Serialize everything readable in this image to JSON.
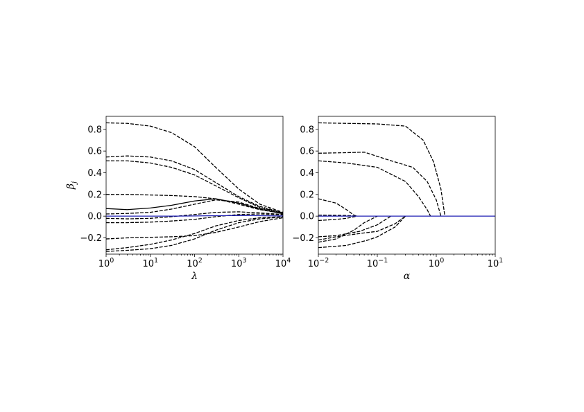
{
  "chart_data": [
    {
      "type": "line",
      "xlabel": "λ",
      "ylabel": "β",
      "ylabel_subscript": "j",
      "xscale": "log",
      "xlim": [
        1,
        10000
      ],
      "ylim": [
        -0.35,
        0.92
      ],
      "x_ticks": [
        {
          "value": 1,
          "base": "10",
          "exp": "0"
        },
        {
          "value": 10,
          "base": "10",
          "exp": "1"
        },
        {
          "value": 100,
          "base": "10",
          "exp": "2"
        },
        {
          "value": 1000,
          "base": "10",
          "exp": "3"
        },
        {
          "value": 10000,
          "base": "10",
          "exp": "4"
        }
      ],
      "y_ticks": [
        {
          "value": -0.2,
          "label": "−0.2"
        },
        {
          "value": 0.0,
          "label": "0.0"
        },
        {
          "value": 0.2,
          "label": "0.2"
        },
        {
          "value": 0.4,
          "label": "0.4"
        },
        {
          "value": 0.6,
          "label": "0.6"
        },
        {
          "value": 0.8,
          "label": "0.8"
        }
      ],
      "grid": false,
      "series": [
        {
          "color": "#000000",
          "dash": "dashed",
          "x": [
            1,
            3,
            10,
            30,
            100,
            300,
            1000,
            3000,
            10000
          ],
          "y": [
            0.86,
            0.855,
            0.83,
            0.77,
            0.64,
            0.45,
            0.25,
            0.11,
            0.035
          ]
        },
        {
          "color": "#000000",
          "dash": "dashed",
          "x": [
            1,
            3,
            10,
            30,
            100,
            300,
            1000,
            3000,
            10000
          ],
          "y": [
            0.545,
            0.555,
            0.545,
            0.51,
            0.43,
            0.31,
            0.18,
            0.09,
            0.03
          ]
        },
        {
          "color": "#000000",
          "dash": "dashed",
          "x": [
            1,
            3,
            10,
            30,
            100,
            300,
            1000,
            3000,
            10000
          ],
          "y": [
            0.51,
            0.51,
            0.49,
            0.45,
            0.38,
            0.28,
            0.17,
            0.08,
            0.028
          ]
        },
        {
          "color": "#000000",
          "dash": "dashed",
          "x": [
            1,
            3,
            10,
            30,
            100,
            300,
            1000,
            3000,
            10000
          ],
          "y": [
            0.2,
            0.2,
            0.195,
            0.19,
            0.18,
            0.16,
            0.11,
            0.06,
            0.025
          ]
        },
        {
          "color": "#000000",
          "dash": "solid",
          "x": [
            1,
            3,
            10,
            30,
            100,
            300,
            1000,
            3000,
            10000
          ],
          "y": [
            0.07,
            0.06,
            0.075,
            0.1,
            0.14,
            0.16,
            0.12,
            0.065,
            0.022
          ]
        },
        {
          "color": "#000000",
          "dash": "dashed",
          "x": [
            1,
            3,
            10,
            30,
            100,
            300,
            1000,
            3000,
            10000
          ],
          "y": [
            0.02,
            0.025,
            0.035,
            0.065,
            0.11,
            0.15,
            0.13,
            0.07,
            0.024
          ]
        },
        {
          "color": "#000000",
          "dash": "dashed",
          "x": [
            1,
            3,
            10,
            30,
            100,
            300,
            1000,
            3000,
            10000
          ],
          "y": [
            -0.02,
            -0.025,
            -0.02,
            -0.005,
            0.015,
            0.035,
            0.04,
            0.03,
            0.015
          ]
        },
        {
          "color": "#000000",
          "dash": "dashed",
          "x": [
            1,
            3,
            10,
            30,
            100,
            300,
            1000,
            3000,
            10000
          ],
          "y": [
            -0.06,
            -0.06,
            -0.055,
            -0.045,
            -0.03,
            -0.005,
            0.015,
            0.02,
            0.012
          ]
        },
        {
          "color": "#000000",
          "dash": "dashed",
          "x": [
            1,
            3,
            10,
            30,
            100,
            300,
            1000,
            3000,
            10000
          ],
          "y": [
            -0.21,
            -0.2,
            -0.195,
            -0.19,
            -0.18,
            -0.15,
            -0.1,
            -0.05,
            -0.015
          ]
        },
        {
          "color": "#000000",
          "dash": "dashed",
          "x": [
            1,
            3,
            10,
            30,
            100,
            300,
            1000,
            3000,
            10000
          ],
          "y": [
            -0.31,
            -0.29,
            -0.26,
            -0.22,
            -0.16,
            -0.09,
            -0.04,
            -0.015,
            -0.005
          ]
        },
        {
          "color": "#000000",
          "dash": "dashed",
          "x": [
            1,
            3,
            10,
            30,
            100,
            300,
            1000,
            3000,
            10000
          ],
          "y": [
            -0.325,
            -0.315,
            -0.3,
            -0.27,
            -0.21,
            -0.13,
            -0.06,
            -0.025,
            -0.008
          ]
        },
        {
          "color": "#1f1fb4",
          "dash": "solid",
          "x": [
            1,
            3,
            10,
            30,
            100,
            300,
            1000,
            3000,
            10000
          ],
          "y": [
            0.0,
            0.0,
            0.0,
            0.0,
            0.002,
            0.004,
            0.005,
            0.004,
            0.002
          ]
        }
      ]
    },
    {
      "type": "line",
      "xlabel": "α",
      "xscale": "log",
      "xlim": [
        0.01,
        10
      ],
      "ylim": [
        -0.35,
        0.92
      ],
      "x_ticks": [
        {
          "value": 0.01,
          "base": "10",
          "exp": "−2"
        },
        {
          "value": 0.1,
          "base": "10",
          "exp": "−1"
        },
        {
          "value": 1,
          "base": "10",
          "exp": "0"
        },
        {
          "value": 10,
          "base": "10",
          "exp": "1"
        }
      ],
      "y_ticks": [
        {
          "value": -0.2,
          "label": "−0.2"
        },
        {
          "value": 0.0,
          "label": "0.0"
        },
        {
          "value": 0.2,
          "label": "0.2"
        },
        {
          "value": 0.4,
          "label": "0.4"
        },
        {
          "value": 0.6,
          "label": "0.6"
        },
        {
          "value": 0.8,
          "label": "0.8"
        }
      ],
      "grid": false,
      "series": [
        {
          "color": "#000000",
          "dash": "dashed",
          "x": [
            0.01,
            0.03,
            0.1,
            0.3,
            0.6,
            0.9,
            1.2,
            1.4
          ],
          "y": [
            0.86,
            0.855,
            0.85,
            0.83,
            0.7,
            0.5,
            0.25,
            0.0
          ]
        },
        {
          "color": "#000000",
          "dash": "dashed",
          "x": [
            0.01,
            0.03,
            0.06,
            0.15,
            0.4,
            0.7,
            1.0,
            1.2
          ],
          "y": [
            0.58,
            0.585,
            0.59,
            0.52,
            0.45,
            0.32,
            0.15,
            0.0
          ]
        },
        {
          "color": "#000000",
          "dash": "dashed",
          "x": [
            0.01,
            0.03,
            0.1,
            0.3,
            0.5,
            0.7,
            0.8
          ],
          "y": [
            0.51,
            0.49,
            0.45,
            0.32,
            0.18,
            0.06,
            0.0
          ]
        },
        {
          "color": "#000000",
          "dash": "dashed",
          "x": [
            0.01,
            0.02,
            0.03,
            0.04,
            0.045
          ],
          "y": [
            0.16,
            0.12,
            0.06,
            0.01,
            0.0
          ]
        },
        {
          "color": "#000000",
          "dash": "dashed",
          "x": [
            0.01,
            0.02,
            0.03,
            0.045
          ],
          "y": [
            0.01,
            0.008,
            0.006,
            0.0
          ]
        },
        {
          "color": "#000000",
          "dash": "dashed",
          "x": [
            0.01,
            0.02,
            0.03,
            0.045
          ],
          "y": [
            -0.04,
            -0.03,
            -0.02,
            0.0
          ]
        },
        {
          "color": "#000000",
          "dash": "dashed",
          "x": [
            0.01,
            0.02,
            0.05,
            0.1,
            0.17
          ],
          "y": [
            -0.19,
            -0.18,
            -0.14,
            -0.08,
            0.0
          ]
        },
        {
          "color": "#000000",
          "dash": "dashed",
          "x": [
            0.01,
            0.02,
            0.04,
            0.06,
            0.1
          ],
          "y": [
            -0.24,
            -0.21,
            -0.13,
            -0.06,
            0.0
          ]
        },
        {
          "color": "#000000",
          "dash": "dashed",
          "x": [
            0.01,
            0.02,
            0.05,
            0.1,
            0.2,
            0.3
          ],
          "y": [
            -0.22,
            -0.19,
            -0.16,
            -0.14,
            -0.07,
            0.0
          ]
        },
        {
          "color": "#000000",
          "dash": "dashed",
          "x": [
            0.01,
            0.03,
            0.07,
            0.1,
            0.2,
            0.3
          ],
          "y": [
            -0.29,
            -0.27,
            -0.22,
            -0.19,
            -0.1,
            0.0
          ]
        },
        {
          "color": "#1f1fb4",
          "dash": "solid",
          "x": [
            0.01,
            0.1,
            1,
            10
          ],
          "y": [
            0.0,
            0.0,
            0.0,
            0.0
          ]
        }
      ]
    }
  ]
}
